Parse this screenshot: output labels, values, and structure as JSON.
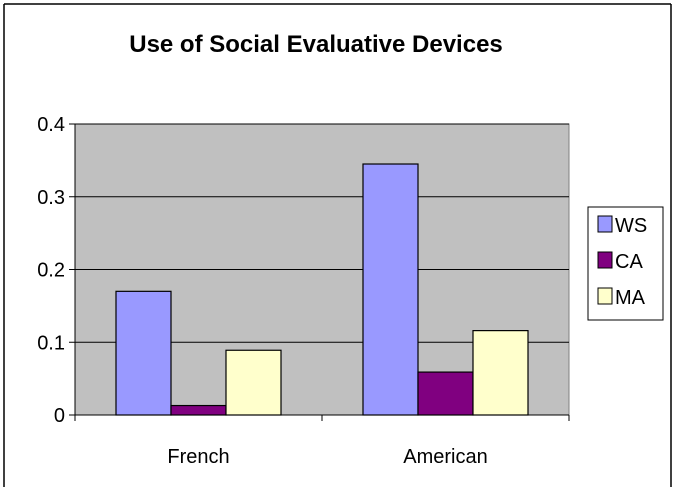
{
  "chart_data": {
    "type": "bar",
    "title": "Use of Social Evaluative Devices",
    "xlabel": "",
    "ylabel": "",
    "categories": [
      "French",
      "American"
    ],
    "series": [
      {
        "name": "WS",
        "values": [
          0.17,
          0.345
        ],
        "color": "#9999ff"
      },
      {
        "name": "CA",
        "values": [
          0.013,
          0.059
        ],
        "color": "#800080"
      },
      {
        "name": "MA",
        "values": [
          0.089,
          0.116
        ],
        "color": "#ffffcc"
      }
    ],
    "ylim": [
      0,
      0.4
    ],
    "yticks": [
      "0",
      "0.1",
      "0.2",
      "0.3",
      "0.4"
    ],
    "grid": true,
    "plot_background": "#c0c0c0",
    "legend_position": "right"
  }
}
